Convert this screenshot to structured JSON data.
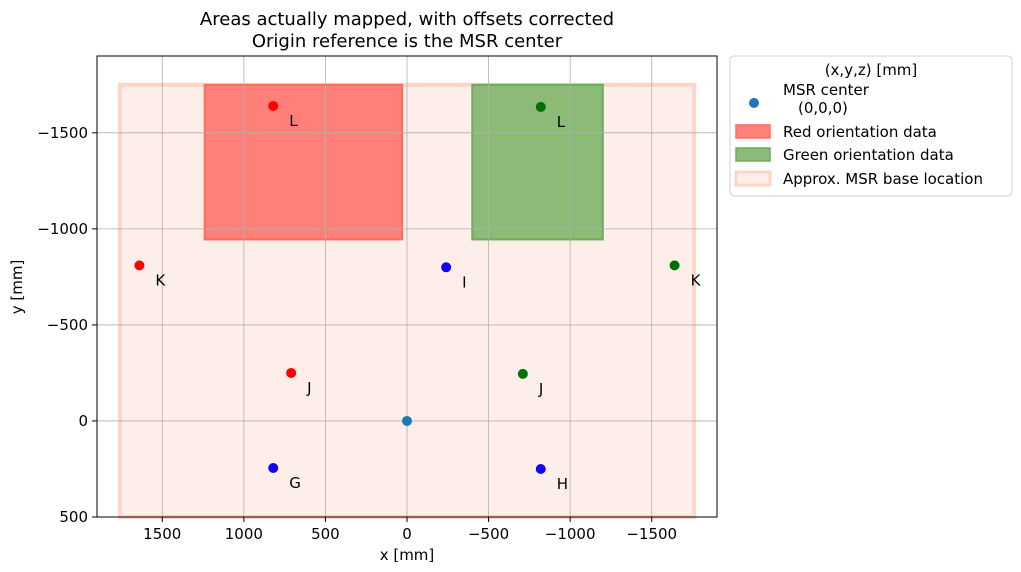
{
  "chart_data": {
    "type": "scatter",
    "title": [
      "Areas actually mapped, with offsets corrected",
      "Origin reference is the MSR center"
    ],
    "xlabel": "x [mm]",
    "ylabel": "y [mm]",
    "xlim": [
      1900,
      -1900
    ],
    "ylim": [
      500,
      -1900
    ],
    "x_reversed": true,
    "y_reversed": true,
    "xticks": [
      1500,
      1000,
      500,
      0,
      -500,
      -1000,
      -1500
    ],
    "xtick_labels": [
      "1500",
      "1000",
      "500",
      "0",
      "−500",
      "−1000",
      "−1500"
    ],
    "yticks": [
      500,
      0,
      -500,
      -1000,
      -1500
    ],
    "ytick_labels": [
      "500",
      "0",
      "−500",
      "−1000",
      "−1500"
    ],
    "grid": true,
    "regions": [
      {
        "name": "Approx. MSR base location",
        "x": [
          1760,
          -1760
        ],
        "y": [
          -1750,
          500
        ],
        "fill": "#fdeeea",
        "edge": "#fbd5c5"
      },
      {
        "name": "Red orientation data",
        "x": [
          1240,
          30
        ],
        "y": [
          -1750,
          -945
        ],
        "fill": "#ff8078",
        "edge": "#ff6a60"
      },
      {
        "name": "Green orientation data",
        "x": [
          -400,
          -1200
        ],
        "y": [
          -1750,
          -945
        ],
        "fill": "#8cbb78",
        "edge": "#6faa5c"
      }
    ],
    "points": [
      {
        "x": 0,
        "y": 0,
        "color": "#1f77b4",
        "label": ""
      },
      {
        "x": 1640,
        "y": -810,
        "color": "#ff0000",
        "label": "K"
      },
      {
        "x": 820,
        "y": -1640,
        "color": "#ff0000",
        "label": "L"
      },
      {
        "x": 710,
        "y": -250,
        "color": "#ff0000",
        "label": "J"
      },
      {
        "x": 820,
        "y": 245,
        "color": "#1400ff",
        "label": "G"
      },
      {
        "x": -240,
        "y": -800,
        "color": "#1400ff",
        "label": "I"
      },
      {
        "x": -820,
        "y": 250,
        "color": "#1400ff",
        "label": "H"
      },
      {
        "x": -820,
        "y": -1635,
        "color": "#007000",
        "label": "L"
      },
      {
        "x": -710,
        "y": -245,
        "color": "#007000",
        "label": "J"
      },
      {
        "x": -1640,
        "y": -810,
        "color": "#007000",
        "label": "K"
      }
    ],
    "legend": {
      "position": "outside upper right",
      "title": "(x,y,z) [mm]",
      "entries": [
        {
          "label": [
            "MSR center",
            "(0,0,0)"
          ],
          "kind": "marker",
          "color": "#1f77b4"
        },
        {
          "label": [
            "Red orientation data"
          ],
          "kind": "patch",
          "color": "#ff8078",
          "edge": "#ff6a60"
        },
        {
          "label": [
            "Green orientation data"
          ],
          "kind": "patch",
          "color": "#8cbb78",
          "edge": "#6faa5c"
        },
        {
          "label": [
            "Approx. MSR base location"
          ],
          "kind": "patch",
          "color": "#fdeeea",
          "edge": "#fbd5c5"
        }
      ]
    }
  }
}
